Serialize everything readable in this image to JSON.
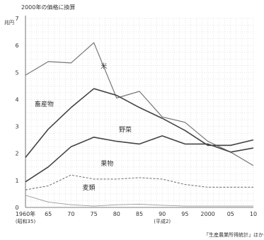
{
  "chart_data": {
    "type": "line",
    "subtitle": "2000年の価格に換算",
    "ylabel": "兆円",
    "ylim": [
      0,
      7
    ],
    "yticks": [
      "0",
      "1",
      "2",
      "3",
      "4",
      "5",
      "6",
      "7"
    ],
    "xlim": [
      1960,
      2010
    ],
    "x": [
      1960,
      1965,
      1970,
      1975,
      1980,
      1985,
      1990,
      1995,
      2000,
      2005,
      2010
    ],
    "xticks": [
      {
        "x": 1960,
        "label": "1960年",
        "sub": "(昭和35)"
      },
      {
        "x": 1965,
        "label": "65",
        "sub": ""
      },
      {
        "x": 1970,
        "label": "70",
        "sub": ""
      },
      {
        "x": 1975,
        "label": "75",
        "sub": ""
      },
      {
        "x": 1980,
        "label": "80",
        "sub": ""
      },
      {
        "x": 1985,
        "label": "85",
        "sub": ""
      },
      {
        "x": 1990,
        "label": "90",
        "sub": "(平成2)"
      },
      {
        "x": 1995,
        "label": "95",
        "sub": ""
      },
      {
        "x": 2000,
        "label": "2000",
        "sub": ""
      },
      {
        "x": 2005,
        "label": "05",
        "sub": ""
      },
      {
        "x": 2010,
        "label": "10",
        "sub": ""
      }
    ],
    "grid": true,
    "series": [
      {
        "name": "米",
        "color": "#777777",
        "dash": "",
        "width": 1.2,
        "values": [
          4.9,
          5.4,
          5.35,
          6.1,
          4.05,
          4.3,
          3.35,
          3.15,
          2.45,
          2.05,
          1.55
        ]
      },
      {
        "name": "畜産物",
        "color": "#444444",
        "dash": "",
        "width": 1.6,
        "values": [
          1.85,
          2.9,
          3.7,
          4.4,
          4.15,
          3.7,
          3.3,
          2.85,
          2.3,
          2.3,
          2.5
        ]
      },
      {
        "name": "野菜",
        "color": "#444444",
        "dash": "",
        "width": 1.6,
        "values": [
          0.95,
          1.5,
          2.25,
          2.6,
          2.45,
          2.35,
          2.65,
          2.35,
          2.35,
          2.05,
          2.2
        ]
      },
      {
        "name": "果物",
        "color": "#777777",
        "dash": "3,2",
        "width": 1.1,
        "values": [
          0.65,
          0.8,
          1.2,
          1.05,
          1.05,
          1.1,
          1.05,
          0.85,
          0.75,
          0.75,
          0.75
        ]
      },
      {
        "name": "麦類",
        "color": "#999999",
        "dash": "",
        "width": 0.9,
        "values": [
          0.45,
          0.2,
          0.1,
          0.05,
          0.1,
          0.12,
          0.08,
          0.05,
          0.05,
          0.05,
          0.05
        ]
      }
    ],
    "labels": [
      {
        "text": "米",
        "x": 1976.5,
        "y": 5.15
      },
      {
        "text": "畜産物",
        "x": 1962,
        "y": 3.75
      },
      {
        "text": "野菜",
        "x": 1980.5,
        "y": 2.8
      },
      {
        "text": "果物",
        "x": 1976.5,
        "y": 1.55
      },
      {
        "text": "麦類",
        "x": 1972.5,
        "y": 0.65
      }
    ],
    "source": "「生産農業所得統計」ほか"
  }
}
